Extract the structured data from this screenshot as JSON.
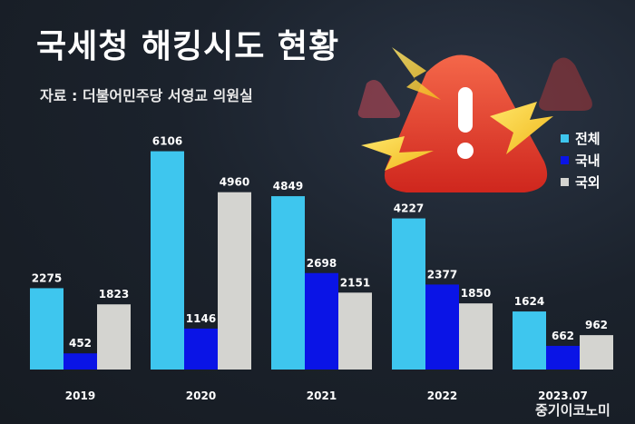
{
  "title": "국세청 해킹시도 현황",
  "source": "자료 : 더불어민주당 서영교 의원실",
  "watermark": "중기이코노미",
  "colors": {
    "total": "#3ec6ee",
    "domestic": "#0a14e6",
    "foreign": "#d4d4d0",
    "label": "#ffffff",
    "background": "#1b222c"
  },
  "illustration": "warning-triangle-with-lightning-bolts",
  "legend": [
    {
      "name": "전체",
      "color": "#3ec6ee"
    },
    {
      "name": "국내",
      "color": "#0a14e6"
    },
    {
      "name": "국외",
      "color": "#d4d4d0"
    }
  ],
  "chart_data": {
    "type": "bar",
    "title": "국세청 해킹시도 현황",
    "categories": [
      "2019",
      "2020",
      "2021",
      "2022",
      "2023.07"
    ],
    "series": [
      {
        "name": "전체",
        "values": [
          2275,
          6106,
          4849,
          4227,
          1624
        ]
      },
      {
        "name": "국내",
        "values": [
          452,
          1146,
          2698,
          2377,
          662
        ]
      },
      {
        "name": "국외",
        "values": [
          1823,
          4960,
          2151,
          1850,
          962
        ]
      }
    ],
    "ylim": [
      0,
      6400
    ],
    "xlabel": "",
    "ylabel": "",
    "grid": false,
    "legend_position": "right"
  }
}
